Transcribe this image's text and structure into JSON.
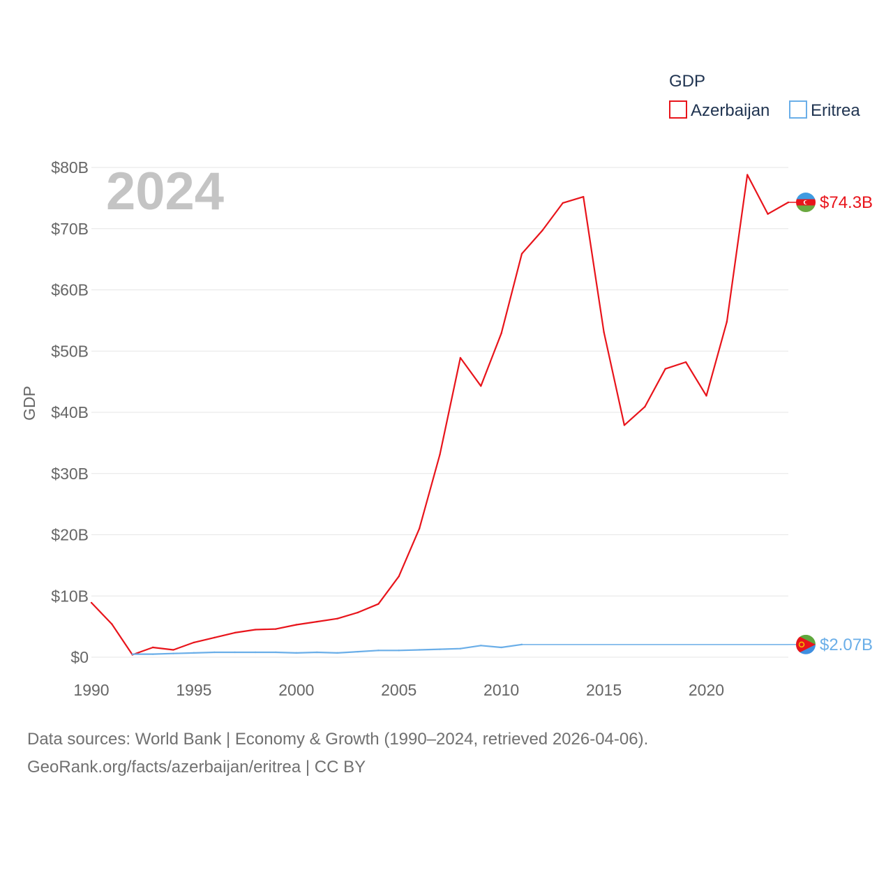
{
  "chart_data": {
    "type": "line",
    "title": "",
    "watermark_year": "2024",
    "ylabel": "GDP",
    "xlabel": "",
    "legend_title": "GDP",
    "legend_position": "top-right",
    "xlim": [
      1990,
      2024
    ],
    "ylim": [
      0,
      80
    ],
    "x_ticks": [
      1990,
      1995,
      2000,
      2005,
      2010,
      2015,
      2020
    ],
    "y_ticks": [
      {
        "value": 0,
        "label": "$0"
      },
      {
        "value": 10,
        "label": "$10B"
      },
      {
        "value": 20,
        "label": "$20B"
      },
      {
        "value": 30,
        "label": "$30B"
      },
      {
        "value": 40,
        "label": "$40B"
      },
      {
        "value": 50,
        "label": "$50B"
      },
      {
        "value": 60,
        "label": "$60B"
      },
      {
        "value": 70,
        "label": "$70B"
      },
      {
        "value": 80,
        "label": "$80B"
      }
    ],
    "grid": true,
    "units": "billion USD",
    "series": [
      {
        "name": "Azerbaijan",
        "color": "#e8141b",
        "end_label": "$74.3B",
        "x": [
          1990,
          1991,
          1992,
          1993,
          1994,
          1995,
          1996,
          1997,
          1998,
          1999,
          2000,
          2001,
          2002,
          2003,
          2004,
          2005,
          2006,
          2007,
          2008,
          2009,
          2010,
          2011,
          2012,
          2013,
          2014,
          2015,
          2016,
          2017,
          2018,
          2019,
          2020,
          2021,
          2022,
          2023,
          2024
        ],
        "values": [
          8.9,
          5.4,
          0.4,
          1.6,
          1.2,
          2.4,
          3.2,
          4.0,
          4.5,
          4.6,
          5.3,
          5.8,
          6.3,
          7.3,
          8.7,
          13.2,
          21.0,
          33.1,
          48.9,
          44.3,
          52.9,
          65.9,
          69.7,
          74.2,
          75.2,
          53.1,
          37.9,
          40.9,
          47.1,
          48.2,
          42.7,
          54.8,
          78.8,
          72.4,
          74.3
        ]
      },
      {
        "name": "Eritrea",
        "color": "#6aaee8",
        "end_label": "$2.07B",
        "x": [
          1992,
          1993,
          1994,
          1995,
          1996,
          1997,
          1998,
          1999,
          2000,
          2001,
          2002,
          2003,
          2004,
          2005,
          2006,
          2007,
          2008,
          2009,
          2010,
          2011
        ],
        "values": [
          0.5,
          0.5,
          0.6,
          0.7,
          0.8,
          0.8,
          0.8,
          0.8,
          0.7,
          0.8,
          0.7,
          0.9,
          1.1,
          1.1,
          1.2,
          1.3,
          1.4,
          1.9,
          1.6,
          2.07
        ],
        "projection_to": 2024
      }
    ]
  },
  "footer": {
    "line1": "Data sources: World Bank | Economy & Growth (1990–2024, retrieved 2026-04-06).",
    "line2": "GeoRank.org/facts/azerbaijan/eritrea | CC BY"
  }
}
